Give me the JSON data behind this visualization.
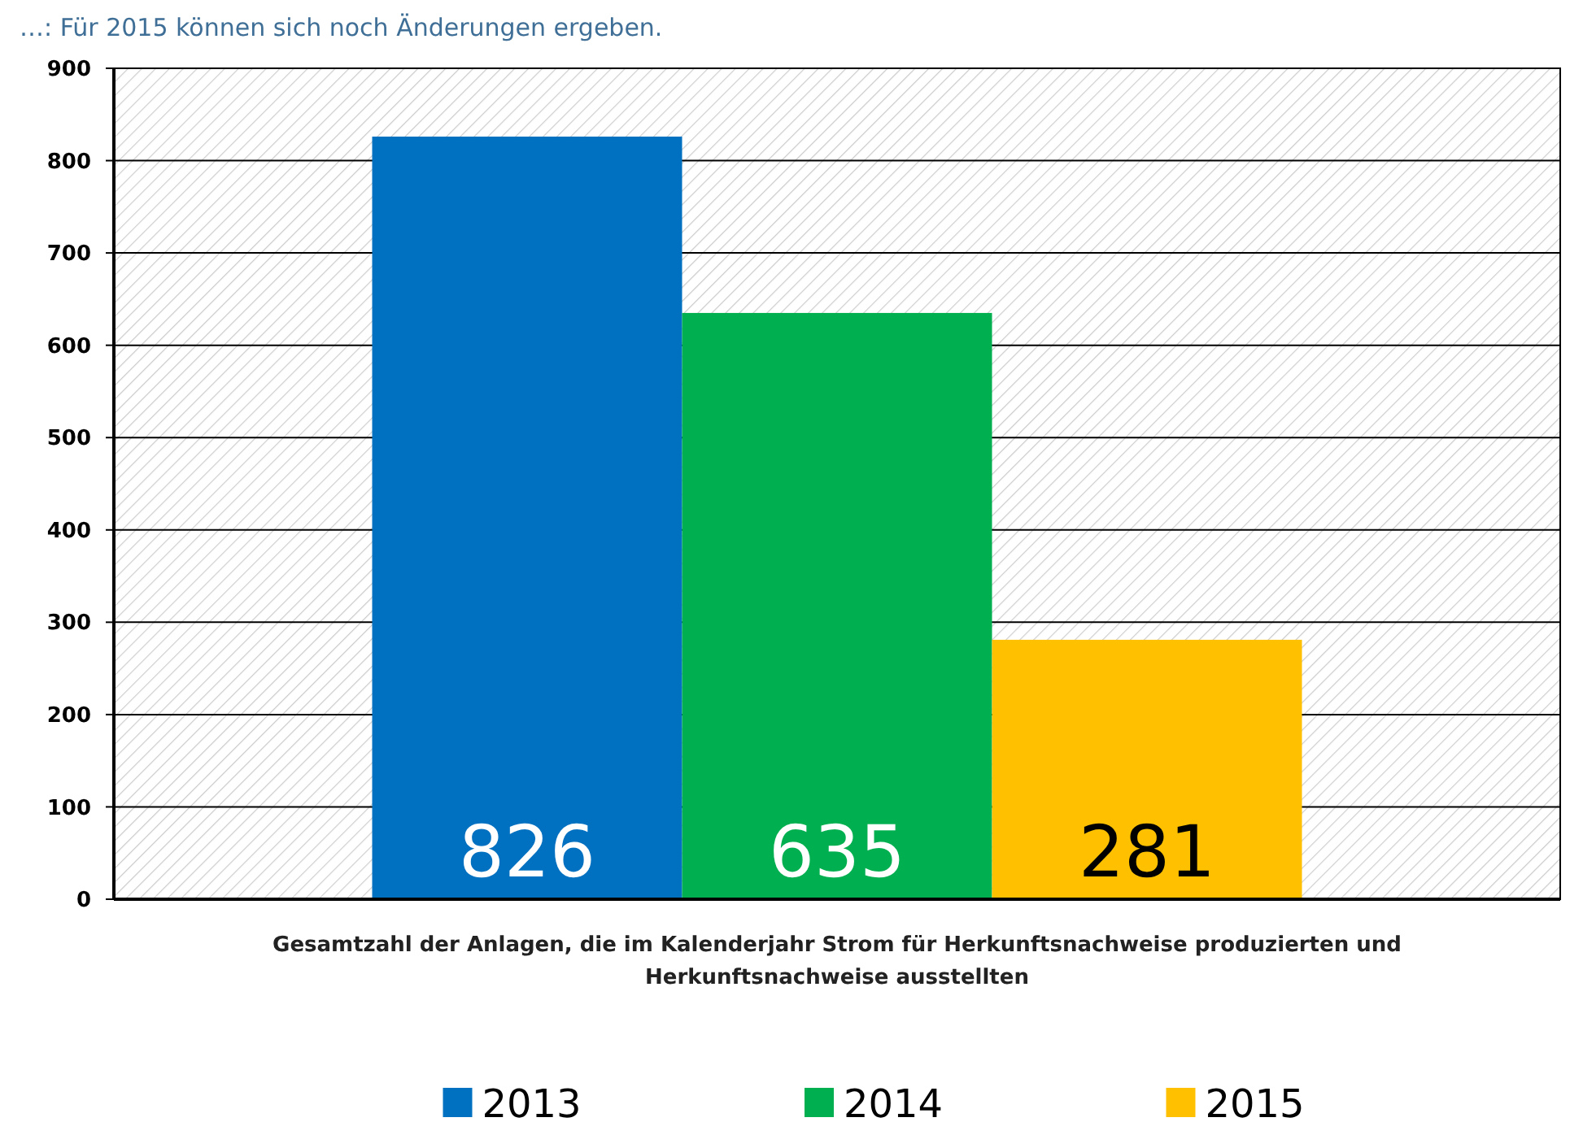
{
  "chart_data": {
    "type": "bar",
    "annotations": [
      "…: Für 2015 können sich noch Änderungen ergeben."
    ],
    "xlabel": "Gesamtzahl der Anlagen, die im Kalenderjahr Strom für Herkunftsnachweise produzierten und Herkunftsnachweise ausstellten",
    "categories": [
      null
    ],
    "series": [
      {
        "name": "2013",
        "color": "#0070c0",
        "values": [
          826
        ]
      },
      {
        "name": "2014",
        "color": "#00b050",
        "values": [
          635
        ]
      },
      {
        "name": "2015",
        "color": "#ffc000",
        "values": [
          281
        ]
      }
    ],
    "ylim": [
      0,
      900
    ],
    "yticks": [
      0,
      100,
      200,
      300,
      400,
      500,
      600,
      700,
      800,
      900
    ],
    "grid": "y",
    "legend": "bottom",
    "data_labels": true
  }
}
